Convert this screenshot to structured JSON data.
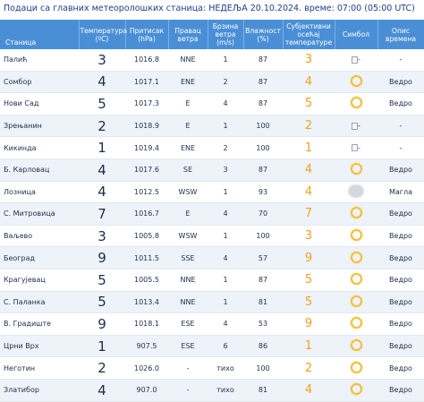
{
  "header": {
    "text": "Подаци са главних метеоролошких станица:  НЕДЕЉА 20.10.2024.  време: 07:00 (05:00 UTC)"
  },
  "columns": {
    "station": "Станица",
    "temp": [
      "Температура",
      "(ºC)"
    ],
    "pressure": [
      "Притисак",
      "(hPa)"
    ],
    "wind_dir": [
      "Правац",
      "ветра"
    ],
    "wind_speed": [
      "Брзина",
      "ветра",
      "(m/s)"
    ],
    "humidity": [
      "Влажност",
      "(%)"
    ],
    "feel": [
      "Субјективни",
      "осећај",
      "температуре"
    ],
    "symbol": [
      "Симбол"
    ],
    "desc": [
      "Опис",
      "времена"
    ]
  },
  "rows": [
    {
      "station": "Палић",
      "temp": "3",
      "pressure": "1016.8",
      "wind_dir": "NNE",
      "wind_speed": "1",
      "humidity": "87",
      "feel": "3",
      "symbol": "broken",
      "desc": "-"
    },
    {
      "station": "Сомбор",
      "temp": "4",
      "pressure": "1017.1",
      "wind_dir": "ENE",
      "wind_speed": "2",
      "humidity": "87",
      "feel": "4",
      "symbol": "sun",
      "desc": "Ведро"
    },
    {
      "station": "Нови Сад",
      "temp": "5",
      "pressure": "1017.3",
      "wind_dir": "E",
      "wind_speed": "4",
      "humidity": "87",
      "feel": "5",
      "symbol": "sun",
      "desc": "Ведро"
    },
    {
      "station": "Зрењанин",
      "temp": "2",
      "pressure": "1018.9",
      "wind_dir": "E",
      "wind_speed": "1",
      "humidity": "100",
      "feel": "2",
      "symbol": "broken",
      "desc": "-"
    },
    {
      "station": "Кикинда",
      "temp": "1",
      "pressure": "1019.4",
      "wind_dir": "ENE",
      "wind_speed": "2",
      "humidity": "100",
      "feel": "1",
      "symbol": "broken",
      "desc": "-"
    },
    {
      "station": "Б. Карловац",
      "temp": "4",
      "pressure": "1017.6",
      "wind_dir": "SE",
      "wind_speed": "3",
      "humidity": "87",
      "feel": "4",
      "symbol": "sun",
      "desc": "Ведро"
    },
    {
      "station": "Лозница",
      "temp": "4",
      "pressure": "1012.5",
      "wind_dir": "WSW",
      "wind_speed": "1",
      "humidity": "93",
      "feel": "4",
      "symbol": "fog",
      "desc": "Магла"
    },
    {
      "station": "С. Митровица",
      "temp": "7",
      "pressure": "1016.7",
      "wind_dir": "E",
      "wind_speed": "4",
      "humidity": "70",
      "feel": "7",
      "symbol": "sun",
      "desc": "Ведро"
    },
    {
      "station": "Ваљево",
      "temp": "3",
      "pressure": "1005.8",
      "wind_dir": "WSW",
      "wind_speed": "1",
      "humidity": "100",
      "feel": "3",
      "symbol": "sun",
      "desc": "Ведро"
    },
    {
      "station": "Београд",
      "temp": "9",
      "pressure": "1011.5",
      "wind_dir": "SSE",
      "wind_speed": "4",
      "humidity": "57",
      "feel": "9",
      "symbol": "sun",
      "desc": "Ведро"
    },
    {
      "station": "Крагујевац",
      "temp": "5",
      "pressure": "1005.5",
      "wind_dir": "NNE",
      "wind_speed": "1",
      "humidity": "87",
      "feel": "5",
      "symbol": "sun",
      "desc": "Ведро"
    },
    {
      "station": "С. Паланка",
      "temp": "5",
      "pressure": "1013.4",
      "wind_dir": "NNE",
      "wind_speed": "1",
      "humidity": "81",
      "feel": "5",
      "symbol": "sun",
      "desc": "Ведро"
    },
    {
      "station": "В. Градиште",
      "temp": "9",
      "pressure": "1018.1",
      "wind_dir": "ESE",
      "wind_speed": "4",
      "humidity": "53",
      "feel": "9",
      "symbol": "sun",
      "desc": "Ведро"
    },
    {
      "station": "Црни Врх",
      "temp": "1",
      "pressure": "907.5",
      "wind_dir": "ESE",
      "wind_speed": "6",
      "humidity": "86",
      "feel": "1",
      "symbol": "sun",
      "desc": "Ведро"
    },
    {
      "station": "Неготин",
      "temp": "2",
      "pressure": "1026.0",
      "wind_dir": "-",
      "wind_speed": "тихо",
      "humidity": "100",
      "feel": "2",
      "symbol": "sun",
      "desc": "Ведро"
    },
    {
      "station": "Златибор",
      "temp": "4",
      "pressure": "907.0",
      "wind_dir": "-",
      "wind_speed": "тихо",
      "humidity": "81",
      "feel": "4",
      "symbol": "sun",
      "desc": "Ведро"
    }
  ]
}
